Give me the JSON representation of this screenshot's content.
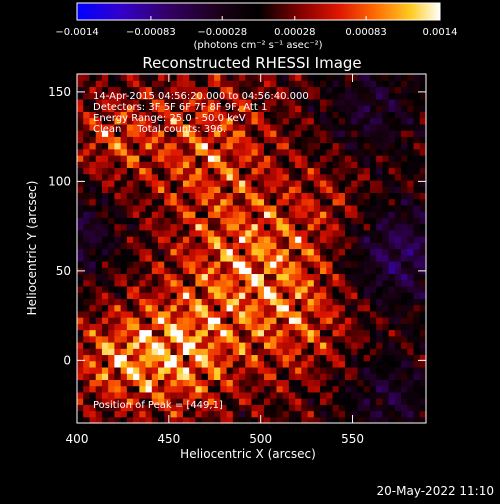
{
  "chart_data": {
    "type": "heatmap",
    "title": "Reconstructed RHESSI Image",
    "xlabel": "Heliocentric X (arcsec)",
    "ylabel": "Heliocentric Y (arcsec)",
    "xlim": [
      400,
      590
    ],
    "ylim": [
      -35,
      160
    ],
    "x_ticks": [
      400,
      450,
      500,
      550
    ],
    "y_ticks": [
      0,
      50,
      100,
      150
    ],
    "x_tick_labels": [
      "400",
      "450",
      "500",
      "550"
    ],
    "y_tick_labels": [
      "0",
      "50",
      "100",
      "150"
    ],
    "colorbar": {
      "range": [
        -0.0014,
        0.0014
      ],
      "ticks": [
        -0.0014,
        -0.00083,
        -0.00028,
        0.00028,
        0.00083,
        0.0014
      ],
      "tick_labels": [
        "−0.0014",
        "−0.00083",
        "−0.00028",
        "0.00028",
        "0.00083",
        "0.0014"
      ],
      "unit_label": "(photons cm⁻² s⁻¹ asec⁻²)"
    },
    "annotations": {
      "time_range": "14-Apr-2015 04:56:20.000 to 04:56:40.000",
      "detectors": "Detectors: 3F 5F 6F 7F 8F 9F, Att 1",
      "energy_range": "Energy Range: 25.0 - 50.0 keV",
      "clean_counts": "Clean     Total counts: 396.",
      "peak_position": "Position of Peak = [449,1]"
    },
    "peak": {
      "x": 449,
      "y": 1
    },
    "grid": false
  },
  "footer": {
    "timestamp": "20-May-2022 11:10"
  },
  "colors": {
    "background": "#000000",
    "text": "#ffffff",
    "colormap_low": "#0000ff",
    "colormap_mid": "#000000",
    "colormap_high": "#ffffff"
  }
}
